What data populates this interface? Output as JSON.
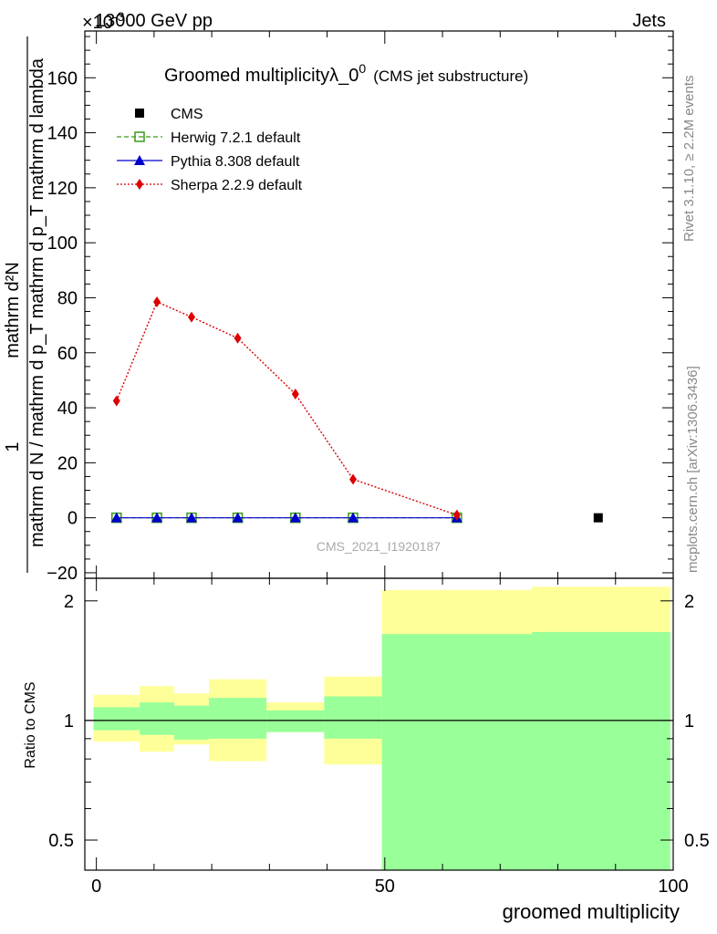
{
  "header": {
    "energy": "13000 GeV pp",
    "process": "Jets",
    "exponent_prefix": "×10",
    "exponent": "-3"
  },
  "main_plot": {
    "title": "Groomed multiplicityλ_0",
    "title_sup": "0",
    "title_suffix": "(CMS jet substructure)",
    "ylabel_numerator": "1",
    "ylabel_denominator": "mathrm d N / mathrm d p_T mathrm d p_T mathrm d lambda",
    "ylabel_top": "mathrm d²N",
    "watermark": "CMS_2021_I1920187",
    "yticks": [
      "−20",
      "0",
      "20",
      "40",
      "60",
      "80",
      "100",
      "120",
      "140",
      "160"
    ]
  },
  "legend": {
    "entries": [
      {
        "label": "CMS",
        "color": "#000000",
        "marker": "square"
      },
      {
        "label": "Herwig 7.2.1 default",
        "color": "#3a9a1a",
        "marker": "open-square"
      },
      {
        "label": "Pythia 8.308 default",
        "color": "#0000cc",
        "marker": "triangle"
      },
      {
        "label": "Sherpa 2.2.9 default",
        "color": "#dd0000",
        "marker": "diamond"
      }
    ]
  },
  "side_text": {
    "rivet": "Rivet 3.1.10, ≥ 2.2M events",
    "mcplots": "mcplots.cern.ch [arXiv:1306.3436]"
  },
  "ratio_plot": {
    "ylabel": "Ratio to CMS",
    "yticks_left": [
      "0.5",
      "1",
      "2"
    ],
    "yticks_right": [
      "0.5",
      "1",
      "2"
    ]
  },
  "xaxis": {
    "label": "groomed multiplicity",
    "ticks": [
      "0",
      "50",
      "100"
    ]
  },
  "chart_data": {
    "type": "scatter",
    "xlim": [
      -2,
      100
    ],
    "ylim": [
      -22,
      177
    ],
    "series": [
      {
        "name": "CMS",
        "x": [
          87
        ],
        "y": [
          0
        ]
      },
      {
        "name": "Herwig 7.2.1 default",
        "x": [
          3.5,
          10.5,
          16.5,
          24.5,
          34.5,
          44.5,
          62.5
        ],
        "y": [
          0,
          0,
          0,
          0,
          0,
          0,
          0
        ]
      },
      {
        "name": "Pythia 8.308 default",
        "x": [
          3.5,
          10.5,
          16.5,
          24.5,
          34.5,
          44.5,
          62.5
        ],
        "y": [
          0,
          0,
          0,
          0,
          0,
          0,
          0
        ]
      },
      {
        "name": "Sherpa 2.2.9 default",
        "x": [
          3.5,
          10.5,
          16.5,
          24.5,
          34.5,
          44.5,
          62.5
        ],
        "y": [
          42.5,
          78.5,
          73,
          65.3,
          45,
          14,
          1
        ]
      }
    ],
    "ratio": {
      "ylim": [
        0.42,
        2.28
      ],
      "scale": "log",
      "reference": 1,
      "bands": [
        {
          "x": [
            -0.5,
            7.5
          ],
          "inner": [
            0.945,
            1.08
          ],
          "outer": [
            0.885,
            1.16
          ]
        },
        {
          "x": [
            7.5,
            13.5
          ],
          "inner": [
            0.92,
            1.11
          ],
          "outer": [
            0.835,
            1.22
          ]
        },
        {
          "x": [
            13.5,
            19.5
          ],
          "inner": [
            0.895,
            1.09
          ],
          "outer": [
            0.87,
            1.17
          ]
        },
        {
          "x": [
            19.5,
            29.5
          ],
          "inner": [
            0.9,
            1.14
          ],
          "outer": [
            0.79,
            1.27
          ]
        },
        {
          "x": [
            29.5,
            39.5
          ],
          "inner": [
            0.935,
            1.06
          ],
          "outer": [
            0.935,
            1.11
          ]
        },
        {
          "x": [
            39.5,
            49.5
          ],
          "inner": [
            0.9,
            1.15
          ],
          "outer": [
            0.775,
            1.29
          ]
        },
        {
          "x": [
            49.5,
            75.5
          ],
          "inner": [
            0.375,
            1.65
          ],
          "outer": [
            0.375,
            2.13
          ]
        },
        {
          "x": [
            75.5,
            99.5
          ],
          "inner": [
            0.375,
            1.67
          ],
          "outer": [
            0.375,
            2.17
          ]
        }
      ]
    }
  }
}
